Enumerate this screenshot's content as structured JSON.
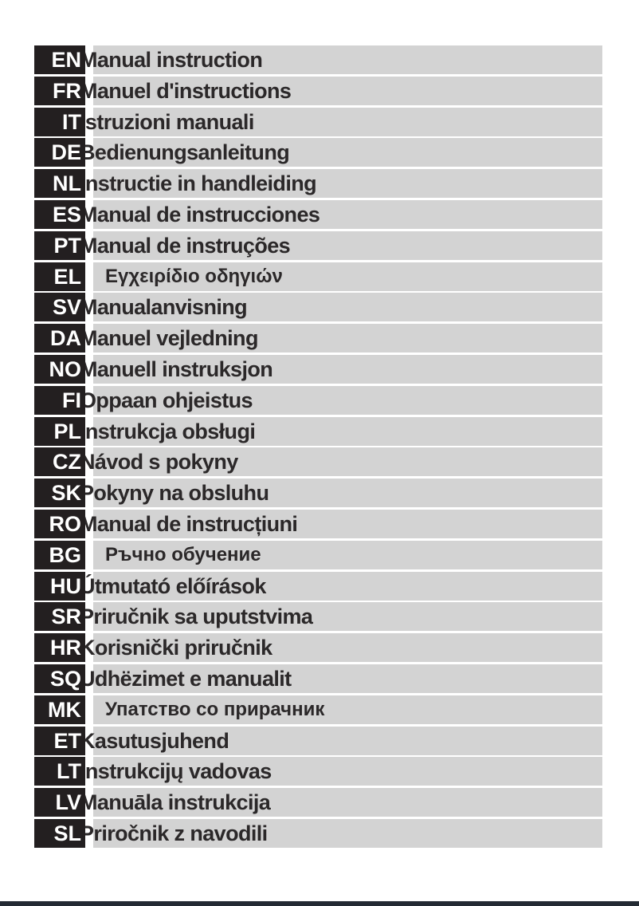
{
  "page": {
    "badge_color": "#231f20",
    "bar_color": "#d3d3d3",
    "text_color": "#2b2829",
    "bottom_bar_color": "#232a33"
  },
  "rows": [
    {
      "code": "EN",
      "label": "Manual instruction",
      "emphasis": false
    },
    {
      "code": "FR",
      "label": "Manuel d'instructions",
      "emphasis": false
    },
    {
      "code": "IT",
      "label": "Istruzioni manuali",
      "emphasis": false
    },
    {
      "code": "DE",
      "label": "Bedienungsanleitung",
      "emphasis": false
    },
    {
      "code": "NL",
      "label": "Instructie in handleiding",
      "emphasis": false
    },
    {
      "code": "ES",
      "label": "Manual de instrucciones",
      "emphasis": false
    },
    {
      "code": "PT",
      "label": "Manual de instruções",
      "emphasis": false
    },
    {
      "code": "EL",
      "label": "Εγχειρίδιο οδηγιών",
      "emphasis": true
    },
    {
      "code": "SV",
      "label": "Manualanvisning",
      "emphasis": false
    },
    {
      "code": "DA",
      "label": "Manuel vejledning",
      "emphasis": false
    },
    {
      "code": "NO",
      "label": "Manuell instruksjon",
      "emphasis": false
    },
    {
      "code": "FI",
      "label": "Oppaan ohjeistus",
      "emphasis": false
    },
    {
      "code": "PL",
      "label": "Instrukcja obsługi",
      "emphasis": false
    },
    {
      "code": "CZ",
      "label": "Návod s pokyny",
      "emphasis": false
    },
    {
      "code": "SK",
      "label": "Pokyny na obsluhu",
      "emphasis": false
    },
    {
      "code": "RO",
      "label": "Manual de instrucțiuni",
      "emphasis": false
    },
    {
      "code": "BG",
      "label": "Ръчно обучение",
      "emphasis": true
    },
    {
      "code": "HU",
      "label": "Útmutató előírások",
      "emphasis": false
    },
    {
      "code": "SR",
      "label": "Priručnik sa uputstvima",
      "emphasis": false
    },
    {
      "code": "HR",
      "label": "Korisnički priručnik",
      "emphasis": false
    },
    {
      "code": "SQ",
      "label": "Udhëzimet e manualit",
      "emphasis": false
    },
    {
      "code": "MK",
      "label": "Упатство со прирачник",
      "emphasis": true
    },
    {
      "code": "ET",
      "label": "Kasutusjuhend",
      "emphasis": false
    },
    {
      "code": "LT",
      "label": "Instrukcijų vadovas",
      "emphasis": false
    },
    {
      "code": "LV",
      "label": "Manuāla instrukcija",
      "emphasis": false
    },
    {
      "code": "SL",
      "label": "Priročnik z navodili",
      "emphasis": false
    }
  ]
}
